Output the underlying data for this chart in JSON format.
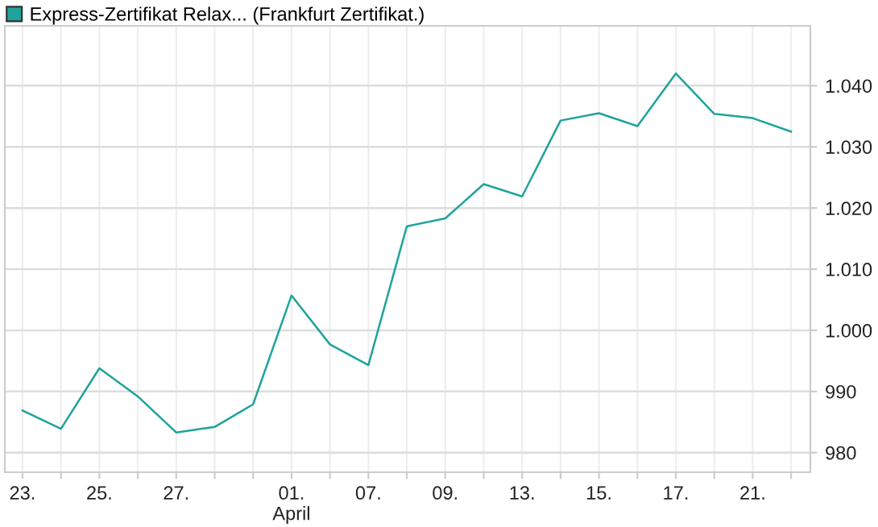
{
  "chart_data": {
    "type": "line",
    "categories": [
      "23.",
      null,
      "25.",
      null,
      "27.",
      null,
      null,
      "01.\nApril",
      null,
      "07.",
      null,
      "09.",
      null,
      "13.",
      null,
      "15.",
      null,
      "17.",
      null,
      "21.",
      null
    ],
    "series": [
      {
        "name": "Express-Zertifikat Relax... (Frankfurt Zertifikat.)",
        "color": "#1fa39c",
        "values": [
          986.9,
          983.9,
          993.8,
          989.2,
          983.3,
          984.2,
          987.9,
          1005.7,
          997.7,
          994.3,
          1017.0,
          1018.3,
          1023.9,
          1021.9,
          1034.3,
          1035.5,
          1033.4,
          1042.0,
          1035.4,
          1034.7,
          1032.5
        ]
      }
    ],
    "ylim": [
      976.8,
      1049.8
    ],
    "yticks": [
      {
        "value": 980,
        "label": "980"
      },
      {
        "value": 990,
        "label": "990"
      },
      {
        "value": 1000,
        "label": "1.000"
      },
      {
        "value": 1010,
        "label": "1.010"
      },
      {
        "value": 1020,
        "label": "1.020"
      },
      {
        "value": 1030,
        "label": "1.030"
      },
      {
        "value": 1040,
        "label": "1.040"
      }
    ],
    "grid": true,
    "legend": "top left",
    "marker": "none",
    "line_style": "solid"
  }
}
